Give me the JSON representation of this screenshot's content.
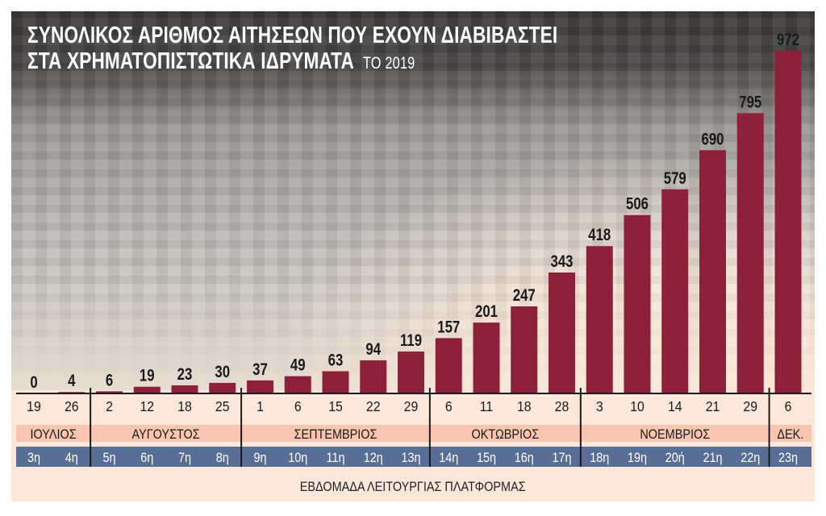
{
  "title": {
    "line1": "ΣΥΝΟΛΙΚΟΣ ΑΡΙΘΜΟΣ ΑΙΤΗΣΕΩΝ ΠΟΥ ΕΧΟΥΝ ΔΙΑΒΙΒΑΣΤΕΙ",
    "line2": "ΣΤΑ ΧΡΗΜΑΤΟΠΙΣΤΩΤΙΚΑ ΙΔΡΥΜΑΤΑ",
    "year": "ΤΟ 2019"
  },
  "chart_data": {
    "type": "bar",
    "title": "ΣΥΝΟΛΙΚΟΣ ΑΡΙΘΜΟΣ ΑΙΤΗΣΕΩΝ ΠΟΥ ΕΧΟΥΝ ΔΙΑΒΙΒΑΣΤΕΙ ΣΤΑ ΧΡΗΜΑΤΟΠΙΣΤΩΤΙΚΑ ΙΔΡΥΜΑΤΑ ΤΟ 2019",
    "xlabel": "ΕΒΔΟΜΑΔΑ ΛΕΙΤΟΥΡΓΙΑΣ ΠΛΑΤΦΟΡΜΑΣ",
    "ylabel": "",
    "ylim": [
      0,
      972
    ],
    "grid": false,
    "days": [
      "19",
      "26",
      "2",
      "12",
      "18",
      "25",
      "1",
      "6",
      "15",
      "22",
      "29",
      "6",
      "11",
      "18",
      "28",
      "3",
      "10",
      "14",
      "21",
      "29",
      "6"
    ],
    "weeks": [
      "3η",
      "4η",
      "5η",
      "6η",
      "7η",
      "8η",
      "9η",
      "10η",
      "11η",
      "12η",
      "13η",
      "14η",
      "15η",
      "16η",
      "17η",
      "18η",
      "19η",
      "20ή",
      "21η",
      "22η",
      "23η"
    ],
    "months": [
      {
        "label": "ΙΟΥΛΙΟΣ",
        "count": 2
      },
      {
        "label": "ΑΥΓΟΥΣΤΟΣ",
        "count": 4
      },
      {
        "label": "ΣΕΠΤΕΜΒΡΙΟΣ",
        "count": 5
      },
      {
        "label": "ΟΚΤΩΒΡΙΟΣ",
        "count": 4
      },
      {
        "label": "ΝΟΕΜΒΡΙΟΣ",
        "count": 5
      },
      {
        "label": "ΔΕΚ.",
        "count": 1
      }
    ],
    "values": [
      0,
      4,
      6,
      19,
      23,
      30,
      37,
      49,
      63,
      94,
      119,
      157,
      201,
      247,
      343,
      418,
      506,
      579,
      690,
      795,
      972
    ],
    "colors": {
      "bar": "#8c2139",
      "month_band": "#f7c5b0",
      "week_band": "#5a6d95",
      "background": "#fbe8da"
    }
  }
}
